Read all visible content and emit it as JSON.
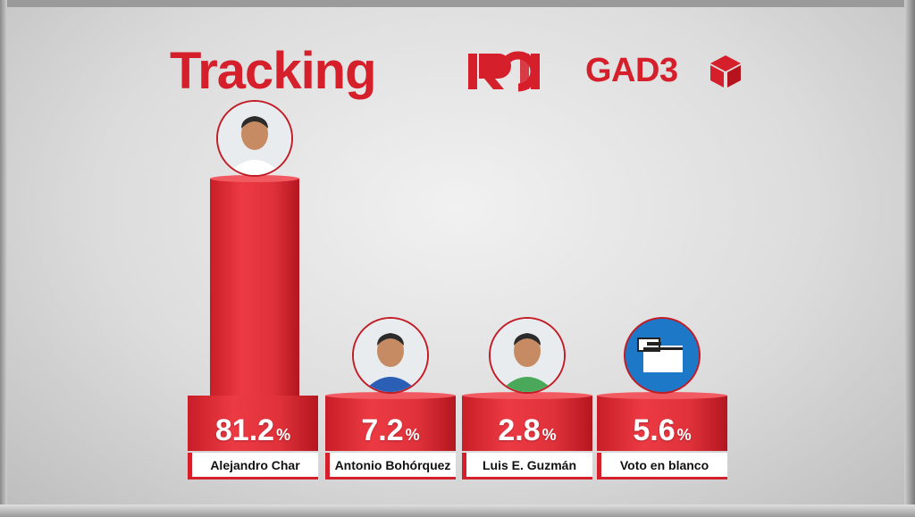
{
  "header": {
    "title": "Tracking",
    "logo_text": "RCN",
    "partner": "GAD3"
  },
  "colors": {
    "accent": "#d51f2a",
    "bar": "#e0323b",
    "label_bg": "#ffffff",
    "ballot_blue": "#1e78c8"
  },
  "chart_data": {
    "type": "bar",
    "categories": [
      "Alejandro Char",
      "Antonio Bohórquez",
      "Luis E. Guzmán",
      "Voto en blanco"
    ],
    "values": [
      81.2,
      7.2,
      2.8,
      5.6
    ],
    "value_labels": [
      "81.2",
      "7.2",
      "2.8",
      "5.6"
    ],
    "unit": "%",
    "ylim": [
      0,
      90
    ],
    "icons": [
      "portrait-photo",
      "portrait-photo",
      "portrait-photo",
      "ballot-box-icon"
    ]
  }
}
